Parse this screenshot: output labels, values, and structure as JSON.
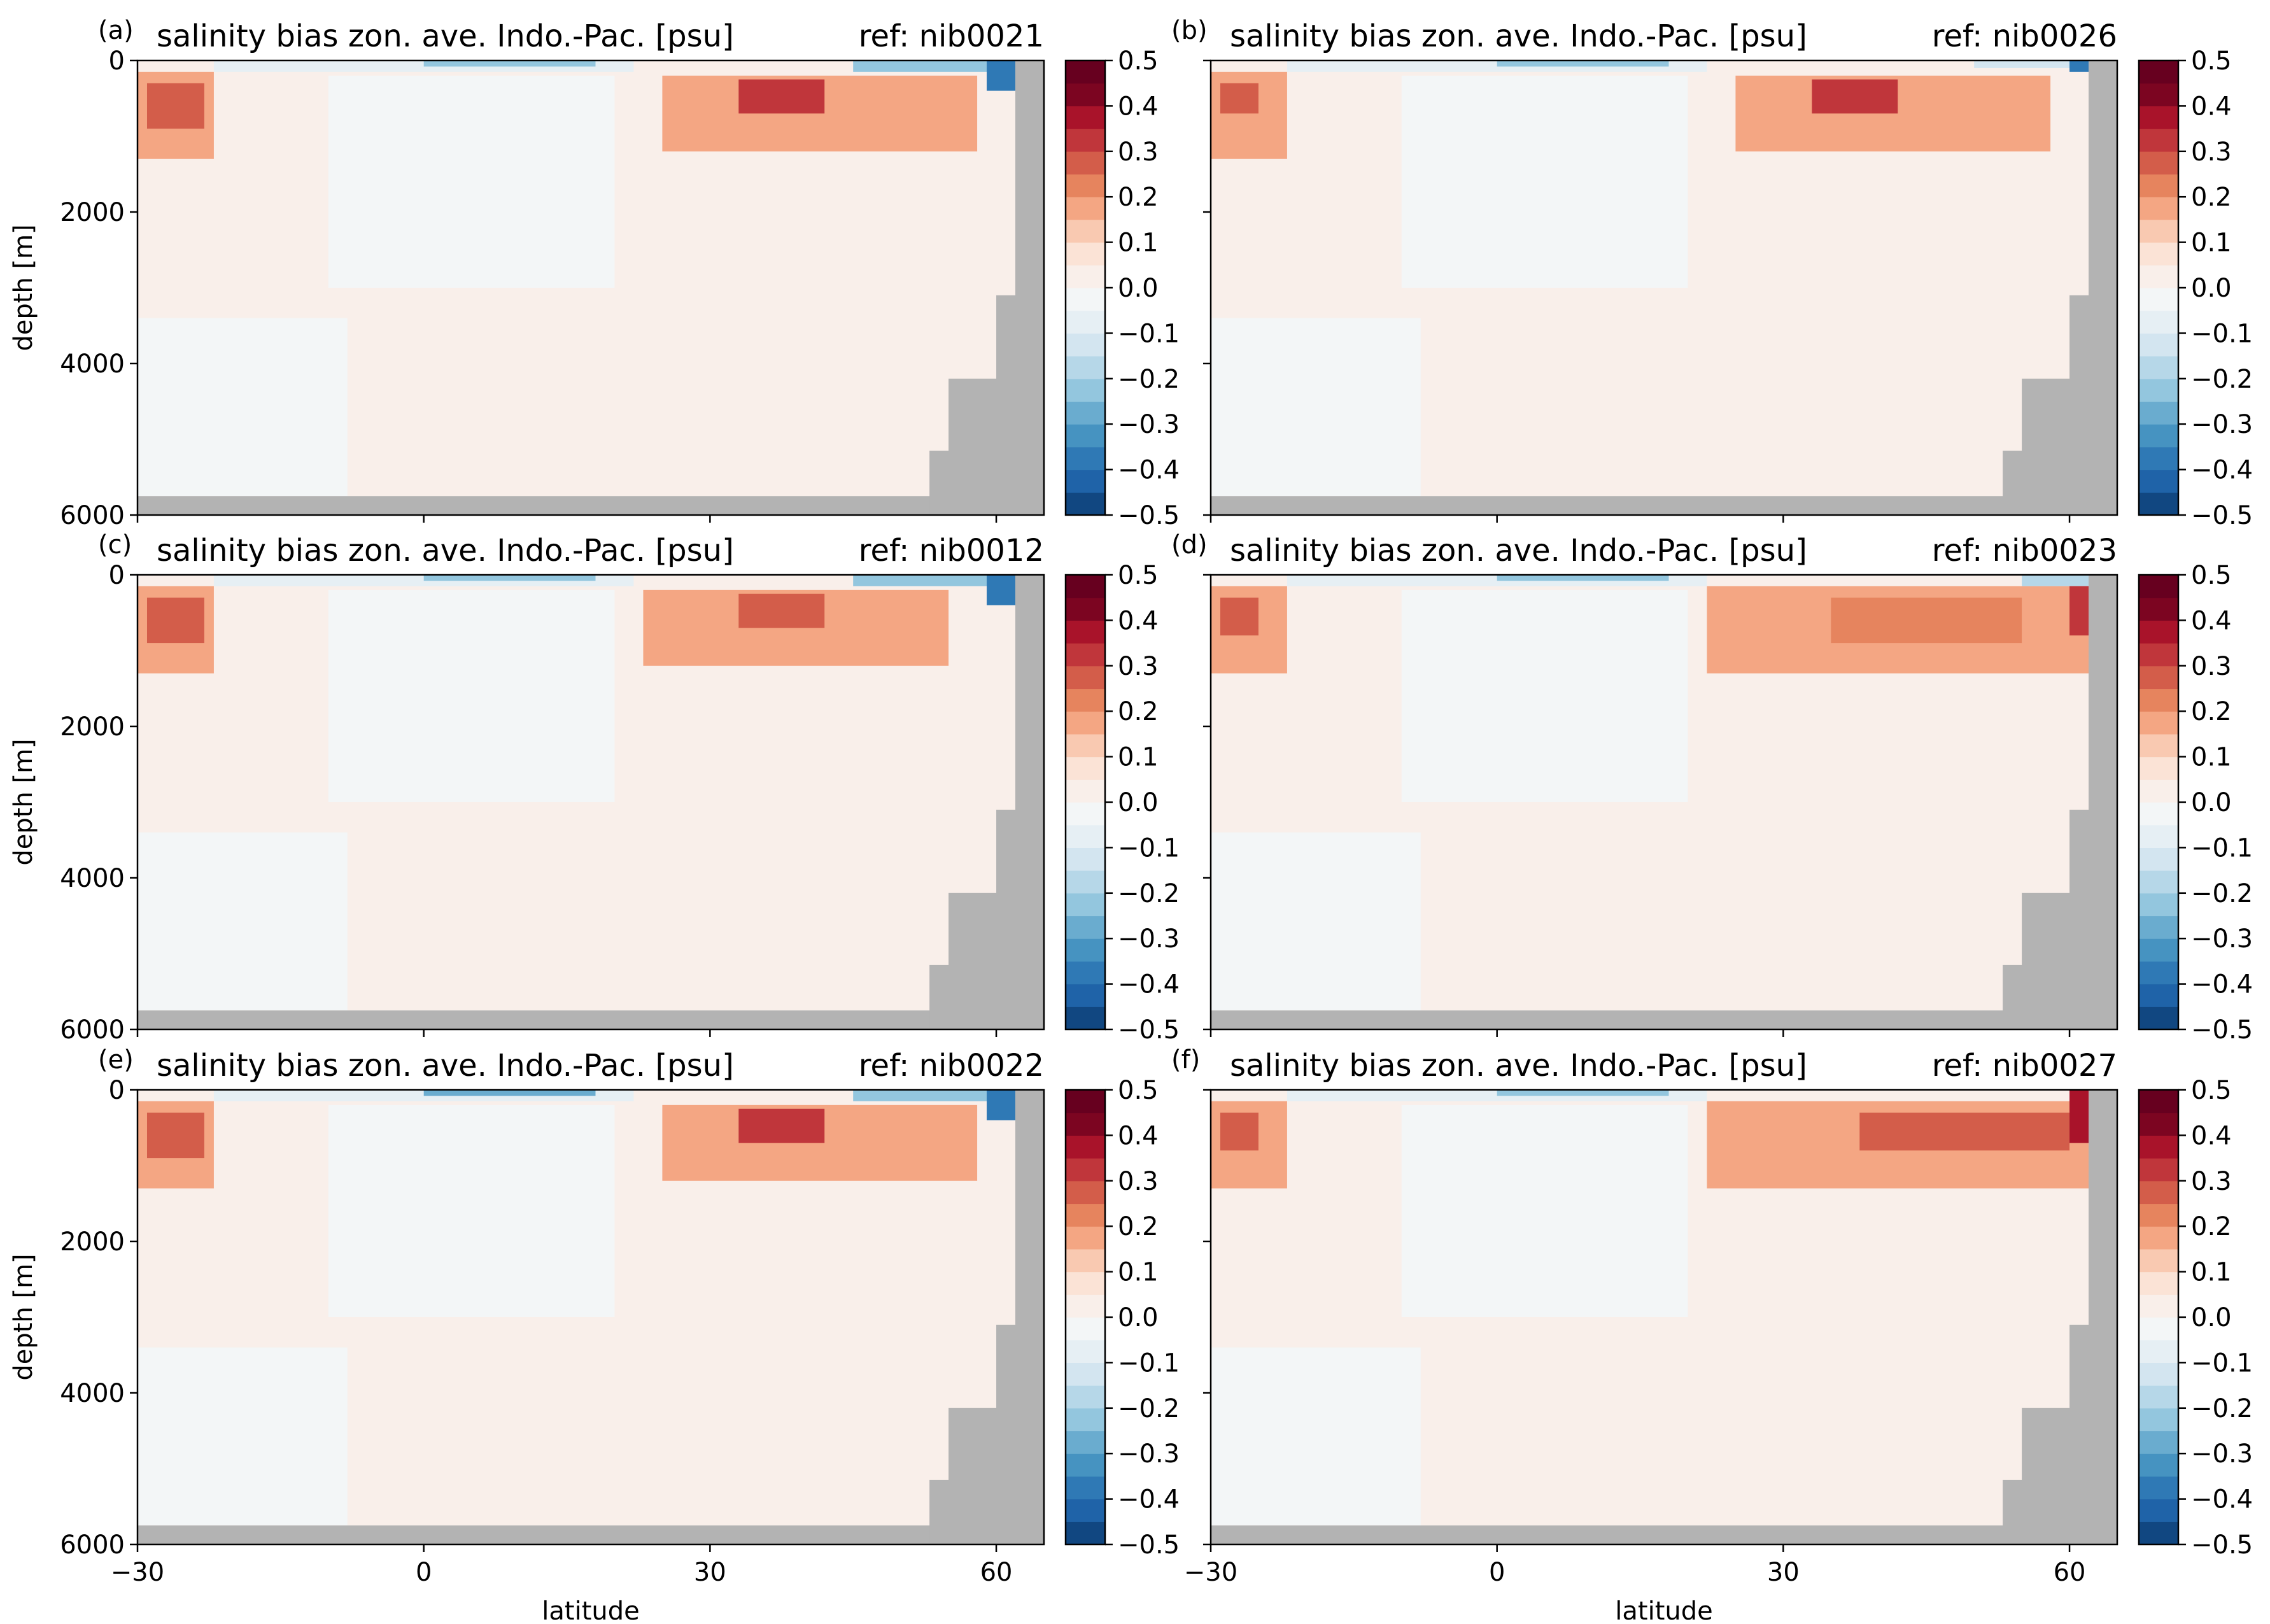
{
  "figure": {
    "xlabel": "latitude",
    "ylabel": "depth [m]"
  },
  "colormap": {
    "name": "RdBu_r",
    "levels": [
      -0.5,
      -0.45,
      -0.4,
      -0.35,
      -0.3,
      -0.25,
      -0.2,
      -0.15,
      -0.1,
      -0.05,
      0.0,
      0.05,
      0.1,
      0.15,
      0.2,
      0.25,
      0.3,
      0.35,
      0.4,
      0.45,
      0.5
    ],
    "colors": [
      "#114781",
      "#1f63a8",
      "#2f79b5",
      "#4693c1",
      "#6aaccf",
      "#93c6de",
      "#b6d7e8",
      "#d3e5f0",
      "#e6eff4",
      "#f3f6f7",
      "#f9efea",
      "#fbe3d6",
      "#f9c9b1",
      "#f4a683",
      "#e6845e",
      "#d35d4a",
      "#c0363b",
      "#a9132a",
      "#7c0521",
      "#67001f"
    ],
    "tick_labels": [
      "−0.5",
      "−0.4",
      "−0.3",
      "−0.2",
      "−0.1",
      "0.0",
      "0.1",
      "0.2",
      "0.3",
      "0.4",
      "0.5"
    ],
    "land_color": "#b3b3b3"
  },
  "chart_data": [
    {
      "panel": "(a)",
      "type": "heatmap",
      "title": "salinity bias zon. ave. Indo.-Pac. [psu]",
      "ref_label": "ref: nib0021",
      "xlabel": "",
      "ylabel": "depth [m]",
      "xlim": [
        -30,
        65
      ],
      "ylim": [
        6000,
        0
      ],
      "xticks": [
        -30,
        0,
        30,
        60
      ],
      "xtick_labels": [
        "",
        "",
        "",
        ""
      ],
      "yticks": [
        0,
        2000,
        4000,
        6000
      ],
      "ytick_labels": [
        "0",
        "2000",
        "4000",
        "6000"
      ],
      "features": [
        {
          "kind": "background",
          "value": 0.03
        },
        {
          "kind": "box",
          "lat": [
            -10,
            20
          ],
          "depth": [
            200,
            3000
          ],
          "value": -0.04
        },
        {
          "kind": "box",
          "lat": [
            -30,
            -8
          ],
          "depth": [
            3400,
            5750
          ],
          "value": -0.04
        },
        {
          "kind": "box",
          "lat": [
            -30,
            -22
          ],
          "depth": [
            150,
            1300
          ],
          "value": 0.18
        },
        {
          "kind": "box",
          "lat": [
            -29,
            -23
          ],
          "depth": [
            300,
            900
          ],
          "value": 0.28
        },
        {
          "kind": "box",
          "lat": [
            25,
            58
          ],
          "depth": [
            200,
            1200
          ],
          "value": 0.18
        },
        {
          "kind": "box",
          "lat": [
            33,
            42
          ],
          "depth": [
            250,
            700
          ],
          "value": 0.3
        },
        {
          "kind": "box",
          "lat": [
            -22,
            22
          ],
          "depth": [
            0,
            150
          ],
          "value": -0.07
        },
        {
          "kind": "box",
          "lat": [
            0,
            18
          ],
          "depth": [
            0,
            80
          ],
          "value": -0.25
        },
        {
          "kind": "box",
          "lat": [
            45,
            60
          ],
          "depth": [
            0,
            150
          ],
          "value": -0.25
        },
        {
          "kind": "box",
          "lat": [
            59,
            62
          ],
          "depth": [
            0,
            400
          ],
          "value": -0.4
        }
      ]
    },
    {
      "panel": "(b)",
      "type": "heatmap",
      "title": "salinity bias zon. ave. Indo.-Pac. [psu]",
      "ref_label": "ref: nib0026",
      "xlabel": "",
      "ylabel": "",
      "xlim": [
        -30,
        65
      ],
      "ylim": [
        6000,
        0
      ],
      "xticks": [
        -30,
        0,
        30,
        60
      ],
      "xtick_labels": [
        "",
        "",
        "",
        ""
      ],
      "yticks": [
        0,
        2000,
        4000,
        6000
      ],
      "ytick_labels": [
        "",
        "",
        "",
        ""
      ],
      "features": [
        {
          "kind": "background",
          "value": 0.03
        },
        {
          "kind": "box",
          "lat": [
            -10,
            20
          ],
          "depth": [
            200,
            3000
          ],
          "value": -0.04
        },
        {
          "kind": "box",
          "lat": [
            -30,
            -8
          ],
          "depth": [
            3400,
            5750
          ],
          "value": -0.04
        },
        {
          "kind": "box",
          "lat": [
            -30,
            -22
          ],
          "depth": [
            150,
            1300
          ],
          "value": 0.15
        },
        {
          "kind": "box",
          "lat": [
            -29,
            -25
          ],
          "depth": [
            300,
            700
          ],
          "value": 0.25
        },
        {
          "kind": "box",
          "lat": [
            25,
            58
          ],
          "depth": [
            200,
            1200
          ],
          "value": 0.18
        },
        {
          "kind": "box",
          "lat": [
            33,
            42
          ],
          "depth": [
            250,
            700
          ],
          "value": 0.3
        },
        {
          "kind": "box",
          "lat": [
            -22,
            22
          ],
          "depth": [
            0,
            150
          ],
          "value": -0.07
        },
        {
          "kind": "box",
          "lat": [
            0,
            18
          ],
          "depth": [
            0,
            80
          ],
          "value": -0.25
        },
        {
          "kind": "box",
          "lat": [
            50,
            60
          ],
          "depth": [
            0,
            100
          ],
          "value": -0.15
        },
        {
          "kind": "box",
          "lat": [
            60,
            62
          ],
          "depth": [
            0,
            150
          ],
          "value": -0.4
        }
      ]
    },
    {
      "panel": "(c)",
      "type": "heatmap",
      "title": "salinity bias zon. ave. Indo.-Pac. [psu]",
      "ref_label": "ref: nib0012",
      "xlabel": "",
      "ylabel": "depth [m]",
      "xlim": [
        -30,
        65
      ],
      "ylim": [
        6000,
        0
      ],
      "xticks": [
        -30,
        0,
        30,
        60
      ],
      "xtick_labels": [
        "",
        "",
        "",
        ""
      ],
      "yticks": [
        0,
        2000,
        4000,
        6000
      ],
      "ytick_labels": [
        "0",
        "2000",
        "4000",
        "6000"
      ],
      "features": [
        {
          "kind": "background",
          "value": 0.03
        },
        {
          "kind": "box",
          "lat": [
            -10,
            20
          ],
          "depth": [
            200,
            3000
          ],
          "value": -0.04
        },
        {
          "kind": "box",
          "lat": [
            -30,
            -8
          ],
          "depth": [
            3400,
            5750
          ],
          "value": -0.04
        },
        {
          "kind": "box",
          "lat": [
            -30,
            -22
          ],
          "depth": [
            150,
            1300
          ],
          "value": 0.18
        },
        {
          "kind": "box",
          "lat": [
            -29,
            -23
          ],
          "depth": [
            300,
            900
          ],
          "value": 0.25
        },
        {
          "kind": "box",
          "lat": [
            23,
            55
          ],
          "depth": [
            200,
            1200
          ],
          "value": 0.18
        },
        {
          "kind": "box",
          "lat": [
            33,
            42
          ],
          "depth": [
            250,
            700
          ],
          "value": 0.25
        },
        {
          "kind": "box",
          "lat": [
            -22,
            22
          ],
          "depth": [
            0,
            150
          ],
          "value": -0.07
        },
        {
          "kind": "box",
          "lat": [
            0,
            18
          ],
          "depth": [
            0,
            80
          ],
          "value": -0.22
        },
        {
          "kind": "box",
          "lat": [
            45,
            60
          ],
          "depth": [
            0,
            150
          ],
          "value": -0.25
        },
        {
          "kind": "box",
          "lat": [
            59,
            62
          ],
          "depth": [
            0,
            400
          ],
          "value": -0.4
        }
      ]
    },
    {
      "panel": "(d)",
      "type": "heatmap",
      "title": "salinity bias zon. ave. Indo.-Pac. [psu]",
      "ref_label": "ref: nib0023",
      "xlabel": "",
      "ylabel": "",
      "xlim": [
        -30,
        65
      ],
      "ylim": [
        6000,
        0
      ],
      "xticks": [
        -30,
        0,
        30,
        60
      ],
      "xtick_labels": [
        "",
        "",
        "",
        ""
      ],
      "yticks": [
        0,
        2000,
        4000,
        6000
      ],
      "ytick_labels": [
        "",
        "",
        "",
        ""
      ],
      "features": [
        {
          "kind": "background",
          "value": 0.03
        },
        {
          "kind": "box",
          "lat": [
            -10,
            20
          ],
          "depth": [
            200,
            3000
          ],
          "value": -0.04
        },
        {
          "kind": "box",
          "lat": [
            -30,
            -8
          ],
          "depth": [
            3400,
            5750
          ],
          "value": -0.04
        },
        {
          "kind": "box",
          "lat": [
            -30,
            -22
          ],
          "depth": [
            150,
            1300
          ],
          "value": 0.15
        },
        {
          "kind": "box",
          "lat": [
            -29,
            -25
          ],
          "depth": [
            300,
            800
          ],
          "value": 0.25
        },
        {
          "kind": "box",
          "lat": [
            22,
            62
          ],
          "depth": [
            150,
            1300
          ],
          "value": 0.18
        },
        {
          "kind": "box",
          "lat": [
            35,
            55
          ],
          "depth": [
            300,
            900
          ],
          "value": 0.23
        },
        {
          "kind": "box",
          "lat": [
            -22,
            22
          ],
          "depth": [
            0,
            150
          ],
          "value": -0.07
        },
        {
          "kind": "box",
          "lat": [
            0,
            18
          ],
          "depth": [
            0,
            80
          ],
          "value": -0.25
        },
        {
          "kind": "box",
          "lat": [
            55,
            62
          ],
          "depth": [
            0,
            150
          ],
          "value": -0.2
        },
        {
          "kind": "box",
          "lat": [
            60,
            62
          ],
          "depth": [
            150,
            800
          ],
          "value": 0.3
        }
      ]
    },
    {
      "panel": "(e)",
      "type": "heatmap",
      "title": "salinity bias zon. ave. Indo.-Pac. [psu]",
      "ref_label": "ref: nib0022",
      "xlabel": "latitude",
      "ylabel": "depth [m]",
      "xlim": [
        -30,
        65
      ],
      "ylim": [
        6000,
        0
      ],
      "xticks": [
        -30,
        0,
        30,
        60
      ],
      "xtick_labels": [
        "−30",
        "0",
        "30",
        "60"
      ],
      "yticks": [
        0,
        2000,
        4000,
        6000
      ],
      "ytick_labels": [
        "0",
        "2000",
        "4000",
        "6000"
      ],
      "features": [
        {
          "kind": "background",
          "value": 0.03
        },
        {
          "kind": "box",
          "lat": [
            -10,
            20
          ],
          "depth": [
            200,
            3000
          ],
          "value": -0.04
        },
        {
          "kind": "box",
          "lat": [
            -30,
            -8
          ],
          "depth": [
            3400,
            5750
          ],
          "value": -0.04
        },
        {
          "kind": "box",
          "lat": [
            -30,
            -22
          ],
          "depth": [
            150,
            1300
          ],
          "value": 0.18
        },
        {
          "kind": "box",
          "lat": [
            -29,
            -23
          ],
          "depth": [
            300,
            900
          ],
          "value": 0.28
        },
        {
          "kind": "box",
          "lat": [
            25,
            58
          ],
          "depth": [
            200,
            1200
          ],
          "value": 0.18
        },
        {
          "kind": "box",
          "lat": [
            33,
            42
          ],
          "depth": [
            250,
            700
          ],
          "value": 0.3
        },
        {
          "kind": "box",
          "lat": [
            -22,
            22
          ],
          "depth": [
            0,
            150
          ],
          "value": -0.07
        },
        {
          "kind": "box",
          "lat": [
            0,
            18
          ],
          "depth": [
            0,
            80
          ],
          "value": -0.28
        },
        {
          "kind": "box",
          "lat": [
            45,
            60
          ],
          "depth": [
            0,
            150
          ],
          "value": -0.25
        },
        {
          "kind": "box",
          "lat": [
            59,
            62
          ],
          "depth": [
            0,
            400
          ],
          "value": -0.4
        }
      ]
    },
    {
      "panel": "(f)",
      "type": "heatmap",
      "title": "salinity bias zon. ave. Indo.-Pac. [psu]",
      "ref_label": "ref: nib0027",
      "xlabel": "latitude",
      "ylabel": "",
      "xlim": [
        -30,
        65
      ],
      "ylim": [
        6000,
        0
      ],
      "xticks": [
        -30,
        0,
        30,
        60
      ],
      "xtick_labels": [
        "−30",
        "0",
        "30",
        "60"
      ],
      "yticks": [
        0,
        2000,
        4000,
        6000
      ],
      "ytick_labels": [
        "",
        "",
        "",
        ""
      ],
      "features": [
        {
          "kind": "background",
          "value": 0.03
        },
        {
          "kind": "box",
          "lat": [
            -10,
            20
          ],
          "depth": [
            200,
            3000
          ],
          "value": -0.04
        },
        {
          "kind": "box",
          "lat": [
            -30,
            -8
          ],
          "depth": [
            3400,
            5750
          ],
          "value": -0.04
        },
        {
          "kind": "box",
          "lat": [
            -30,
            -22
          ],
          "depth": [
            150,
            1300
          ],
          "value": 0.15
        },
        {
          "kind": "box",
          "lat": [
            -29,
            -25
          ],
          "depth": [
            300,
            800
          ],
          "value": 0.25
        },
        {
          "kind": "box",
          "lat": [
            22,
            62
          ],
          "depth": [
            150,
            1300
          ],
          "value": 0.18
        },
        {
          "kind": "box",
          "lat": [
            38,
            60
          ],
          "depth": [
            300,
            800
          ],
          "value": 0.25
        },
        {
          "kind": "box",
          "lat": [
            -22,
            22
          ],
          "depth": [
            0,
            150
          ],
          "value": -0.07
        },
        {
          "kind": "box",
          "lat": [
            0,
            18
          ],
          "depth": [
            0,
            80
          ],
          "value": -0.25
        },
        {
          "kind": "box",
          "lat": [
            60,
            62
          ],
          "depth": [
            0,
            700
          ],
          "value": 0.38
        }
      ]
    }
  ]
}
